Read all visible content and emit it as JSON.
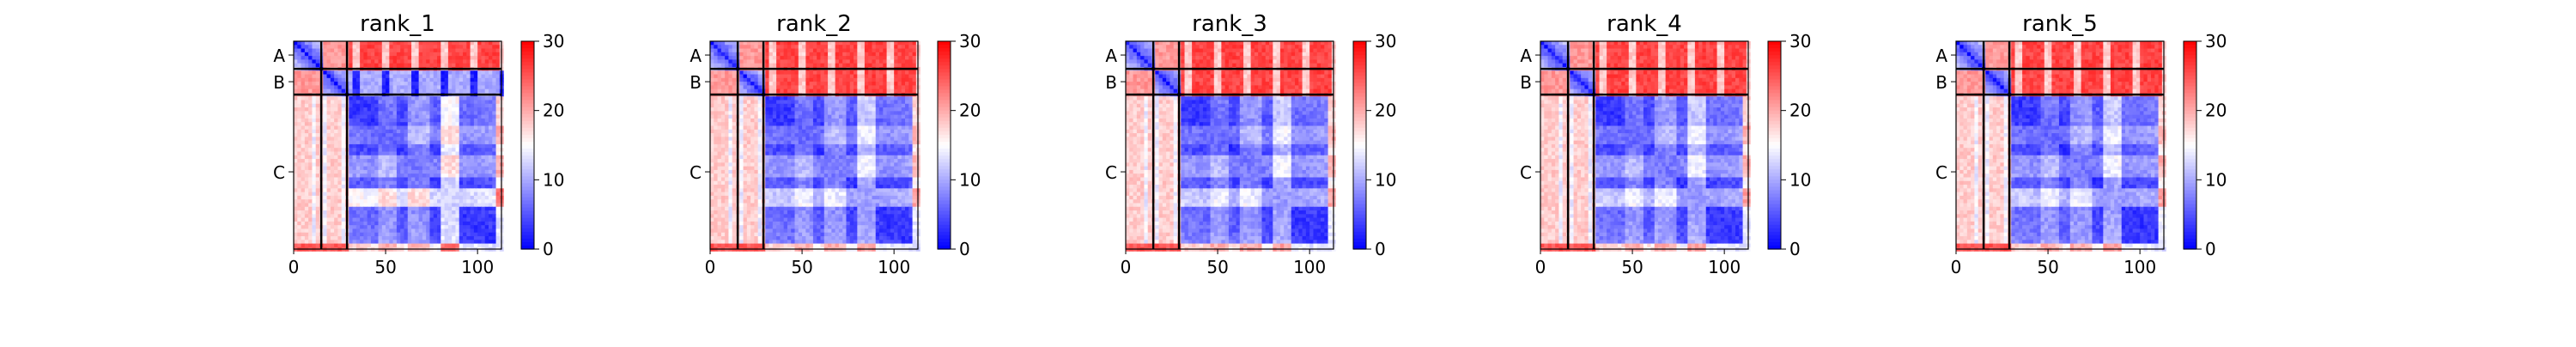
{
  "chart_data": [
    {
      "type": "heatmap",
      "title": "rank_1",
      "chains": [
        "A",
        "B",
        "C"
      ],
      "chain_boundaries": [
        0,
        15,
        29,
        113
      ],
      "x_ticks": [
        0,
        50,
        100
      ],
      "xlim": [
        0,
        113
      ],
      "colorbar": {
        "ticks": [
          0,
          10,
          20,
          30
        ],
        "range": [
          0,
          30
        ],
        "colormap": "bwr"
      },
      "description_pattern": "variant1"
    },
    {
      "type": "heatmap",
      "title": "rank_2",
      "chains": [
        "A",
        "B",
        "C"
      ],
      "chain_boundaries": [
        0,
        15,
        29,
        113
      ],
      "x_ticks": [
        0,
        50,
        100
      ],
      "xlim": [
        0,
        113
      ],
      "colorbar": {
        "ticks": [
          0,
          10,
          20,
          30
        ],
        "range": [
          0,
          30
        ],
        "colormap": "bwr"
      },
      "description_pattern": "variant2"
    },
    {
      "type": "heatmap",
      "title": "rank_3",
      "chains": [
        "A",
        "B",
        "C"
      ],
      "chain_boundaries": [
        0,
        15,
        29,
        113
      ],
      "x_ticks": [
        0,
        50,
        100
      ],
      "xlim": [
        0,
        113
      ],
      "colorbar": {
        "ticks": [
          0,
          10,
          20,
          30
        ],
        "range": [
          0,
          30
        ],
        "colormap": "bwr"
      },
      "description_pattern": "variant2"
    },
    {
      "type": "heatmap",
      "title": "rank_4",
      "chains": [
        "A",
        "B",
        "C"
      ],
      "chain_boundaries": [
        0,
        15,
        29,
        113
      ],
      "x_ticks": [
        0,
        50,
        100
      ],
      "xlim": [
        0,
        113
      ],
      "colorbar": {
        "ticks": [
          0,
          10,
          20,
          30
        ],
        "range": [
          0,
          30
        ],
        "colormap": "bwr"
      },
      "description_pattern": "variant2"
    },
    {
      "type": "heatmap",
      "title": "rank_5",
      "chains": [
        "A",
        "B",
        "C"
      ],
      "chain_boundaries": [
        0,
        15,
        29,
        113
      ],
      "x_ticks": [
        0,
        50,
        100
      ],
      "xlim": [
        0,
        113
      ],
      "colorbar": {
        "ticks": [
          0,
          10,
          20,
          30
        ],
        "range": [
          0,
          30
        ],
        "colormap": "bwr"
      },
      "description_pattern": "variant2"
    }
  ],
  "colors": {
    "low": "#0000ff",
    "mid": "#ffffff",
    "high": "#ff0000",
    "frame": "#000000"
  }
}
